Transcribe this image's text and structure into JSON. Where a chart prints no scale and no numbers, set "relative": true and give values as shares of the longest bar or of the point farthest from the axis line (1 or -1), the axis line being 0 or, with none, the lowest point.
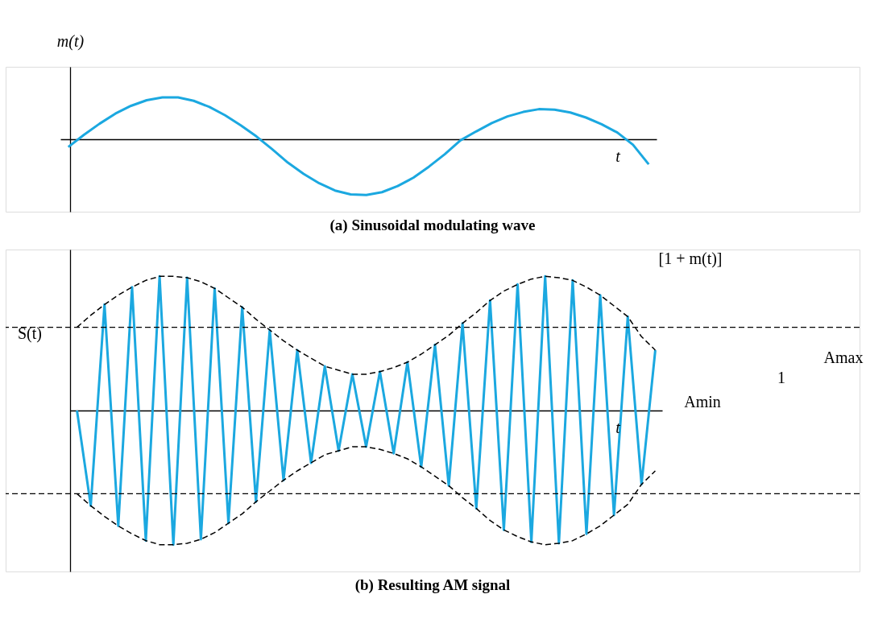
{
  "chart_data": [
    {
      "type": "line",
      "title": "(a) Sinusoidal modulating wave",
      "xlabel": "t",
      "ylabel": "m(t)",
      "relative": true,
      "legend": false,
      "grid": false,
      "line_style": "solid",
      "marker": "none",
      "categories": [
        null,
        null,
        null,
        null,
        null,
        null,
        null,
        null,
        null,
        null,
        null,
        null,
        null,
        null,
        null,
        null,
        null,
        null,
        null,
        null,
        null,
        null,
        null,
        null,
        null,
        null,
        null,
        null,
        null,
        null,
        null,
        null,
        null,
        null,
        null,
        null,
        null,
        null
      ],
      "series": [
        {
          "color": "#1ba8e0",
          "values": [
            -0.14,
            0.08,
            0.28,
            0.46,
            0.6,
            0.7,
            0.75,
            0.75,
            0.69,
            0.58,
            0.43,
            0.25,
            0.05,
            -0.18,
            -0.42,
            -0.62,
            -0.79,
            -0.92,
            -0.99,
            -1.0,
            -0.95,
            -0.84,
            -0.69,
            -0.49,
            -0.27,
            -0.02,
            0.14,
            0.29,
            0.41,
            0.49,
            0.54,
            0.53,
            0.48,
            0.39,
            0.27,
            0.12,
            -0.1,
            -0.45
          ]
        }
      ]
    },
    {
      "type": "line",
      "title": "(b) Resulting AM signal",
      "xlabel": "t",
      "relative": true,
      "legend": false,
      "grid": false,
      "marker": "none",
      "annotations": [
        "S(t)",
        "[1 + m(t)]",
        "1",
        "Amax",
        "Amin"
      ],
      "categories": [
        null,
        null,
        null,
        null,
        null,
        null,
        null,
        null,
        null,
        null,
        null,
        null,
        null,
        null,
        null,
        null,
        null,
        null,
        null,
        null,
        null,
        null,
        null,
        null,
        null,
        null,
        null,
        null,
        null,
        null,
        null,
        null,
        null,
        null,
        null,
        null,
        null,
        null,
        null,
        null,
        null,
        null,
        null
      ],
      "ref_lines": [
        {
          "axis": "y",
          "value": 0.62,
          "label": null,
          "color": "#000000",
          "line_style": "dashed"
        },
        {
          "axis": "y",
          "value": -0.62,
          "label": null,
          "color": "#000000",
          "line_style": "dashed"
        }
      ],
      "series": [
        {
          "color": "#1ba8e0",
          "line_style": "solid",
          "values": [
            0,
            -0.71,
            0.79,
            -0.86,
            0.92,
            -0.97,
            1.0,
            -1.0,
            0.99,
            -0.96,
            0.91,
            -0.84,
            0.77,
            -0.68,
            0.6,
            -0.52,
            0.45,
            -0.39,
            0.33,
            -0.3,
            0.27,
            -0.27,
            0.29,
            -0.32,
            0.36,
            -0.42,
            0.49,
            -0.56,
            0.65,
            -0.73,
            0.82,
            -0.89,
            0.94,
            -0.98,
            1.0,
            -0.99,
            0.97,
            -0.92,
            0.86,
            -0.78,
            0.7,
            -0.55,
            0.45
          ]
        },
        {
          "color": "#000000",
          "line_style": "dashed",
          "values": [
            0.62,
            0.71,
            0.79,
            0.86,
            0.92,
            0.97,
            1.0,
            1.0,
            0.99,
            0.96,
            0.91,
            0.84,
            0.77,
            0.68,
            0.6,
            0.52,
            0.45,
            0.39,
            0.33,
            0.3,
            0.27,
            0.27,
            0.29,
            0.32,
            0.36,
            0.42,
            0.49,
            0.56,
            0.65,
            0.73,
            0.82,
            0.89,
            0.94,
            0.98,
            1.0,
            0.99,
            0.97,
            0.92,
            0.86,
            0.78,
            0.7,
            0.55,
            0.45
          ]
        },
        {
          "color": "#000000",
          "line_style": "dashed",
          "values": [
            -0.62,
            -0.71,
            -0.79,
            -0.86,
            -0.92,
            -0.97,
            -1.0,
            -1.0,
            -0.99,
            -0.96,
            -0.91,
            -0.84,
            -0.77,
            -0.68,
            -0.6,
            -0.52,
            -0.45,
            -0.39,
            -0.33,
            -0.3,
            -0.27,
            -0.27,
            -0.29,
            -0.32,
            -0.36,
            -0.42,
            -0.49,
            -0.56,
            -0.65,
            -0.73,
            -0.82,
            -0.89,
            -0.94,
            -0.98,
            -1.0,
            -0.99,
            -0.97,
            -0.92,
            -0.86,
            -0.78,
            -0.7,
            -0.55,
            -0.45
          ]
        }
      ]
    }
  ]
}
